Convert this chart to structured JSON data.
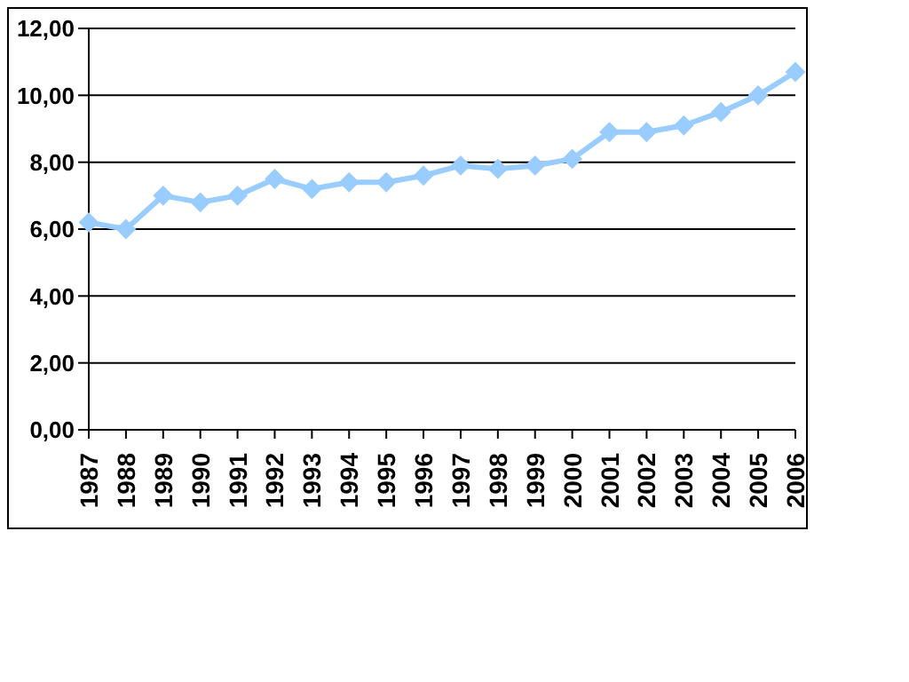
{
  "chart_data": {
    "type": "line",
    "categories": [
      "1987",
      "1988",
      "1989",
      "1990",
      "1991",
      "1992",
      "1993",
      "1994",
      "1995",
      "1996",
      "1997",
      "1998",
      "1999",
      "2000",
      "2001",
      "2002",
      "2003",
      "2004",
      "2005",
      "2006"
    ],
    "series": [
      {
        "color": "#99ccff",
        "values": [
          6.2,
          6.0,
          7.0,
          6.8,
          7.0,
          7.5,
          7.2,
          7.4,
          7.4,
          7.6,
          7.9,
          7.8,
          7.9,
          8.1,
          8.9,
          8.9,
          9.1,
          9.5,
          10.0,
          10.7
        ]
      }
    ],
    "ylim": [
      0,
      12
    ],
    "yticks": [
      {
        "value": 0,
        "label": "0,00"
      },
      {
        "value": 2,
        "label": "2,00"
      },
      {
        "value": 4,
        "label": "4,00"
      },
      {
        "value": 6,
        "label": "6,00"
      },
      {
        "value": 8,
        "label": "8,00"
      },
      {
        "value": 10,
        "label": "10,00"
      },
      {
        "value": 12,
        "label": "12,00"
      }
    ],
    "grid": "y",
    "marker": "diamond",
    "line_style": "solid"
  }
}
